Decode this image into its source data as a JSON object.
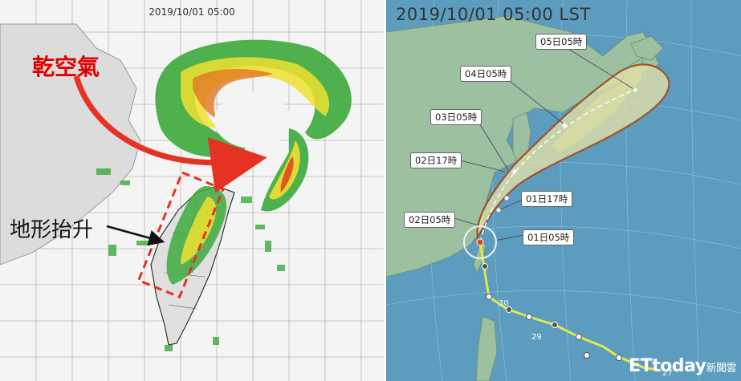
{
  "radar_panel": {
    "timestamp": "2019/10/01 05:00",
    "annotation_dry_air": "乾空氣",
    "annotation_terrain": "地形抬升"
  },
  "track_panel": {
    "timestamp": "2019/10/01 05:00 LST",
    "forecast_labels": [
      "05日05時",
      "04日05時",
      "03日05時",
      "02日17時",
      "01日17時",
      "02日05時",
      "01日05時"
    ],
    "past_dates": [
      "30",
      "29",
      "27"
    ]
  },
  "logo": {
    "brand": "ETtoday",
    "suffix": "新聞雲"
  },
  "colors": {
    "dry_air_arrow": "#e53222",
    "forecast_cone_fill": "#e9e4a8",
    "forecast_cone_edge": "#a0522d",
    "track_line": "#e0e84a",
    "ocean": "#5c9dbf",
    "land": "#9cc0a0"
  }
}
